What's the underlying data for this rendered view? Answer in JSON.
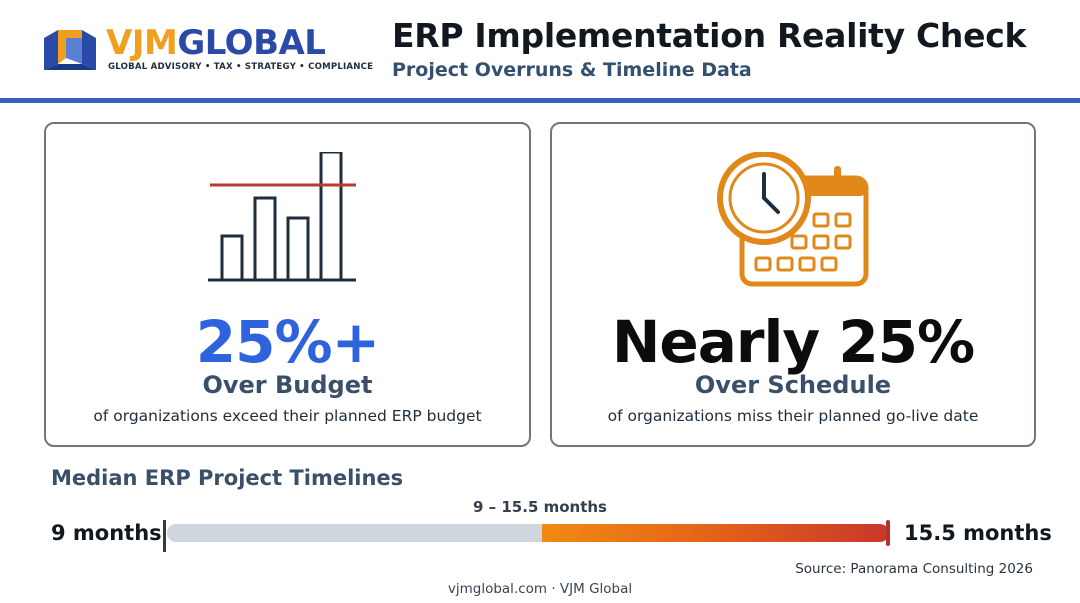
{
  "brand": {
    "name_part1": "VJM",
    "name_part2": "GLOBAL",
    "tagline": "GLOBAL ADVISORY • TAX • STRATEGY • COMPLIANCE",
    "color_orange": "#f0a01e",
    "color_blue": "#2b4aa8"
  },
  "header": {
    "title": "ERP Implementation Reality Check",
    "subtitle": "Project Overruns & Timeline Data"
  },
  "cards": [
    {
      "icon": "bar-chart-over-line-icon",
      "stat": "25%+",
      "stat_color": "#2e63dd",
      "heading": "Over Budget",
      "description": "of organizations exceed their planned ERP budget"
    },
    {
      "icon": "clock-calendar-icon",
      "stat": "Nearly 25%",
      "stat_color": "#0c0c0c",
      "heading": "Over Schedule",
      "description": "of organizations miss their planned go-live date"
    }
  ],
  "timeline": {
    "heading": "Median ERP Project Timelines",
    "range_label": "9 – 15.5 months",
    "min_label": "9 months",
    "max_label": "15.5 months",
    "highlight_start_fraction": 0.52,
    "highlight_end_fraction": 1.0
  },
  "source": "Source: Panorama Consulting 2026",
  "footer": "vjmglobal.com · VJM Global"
}
